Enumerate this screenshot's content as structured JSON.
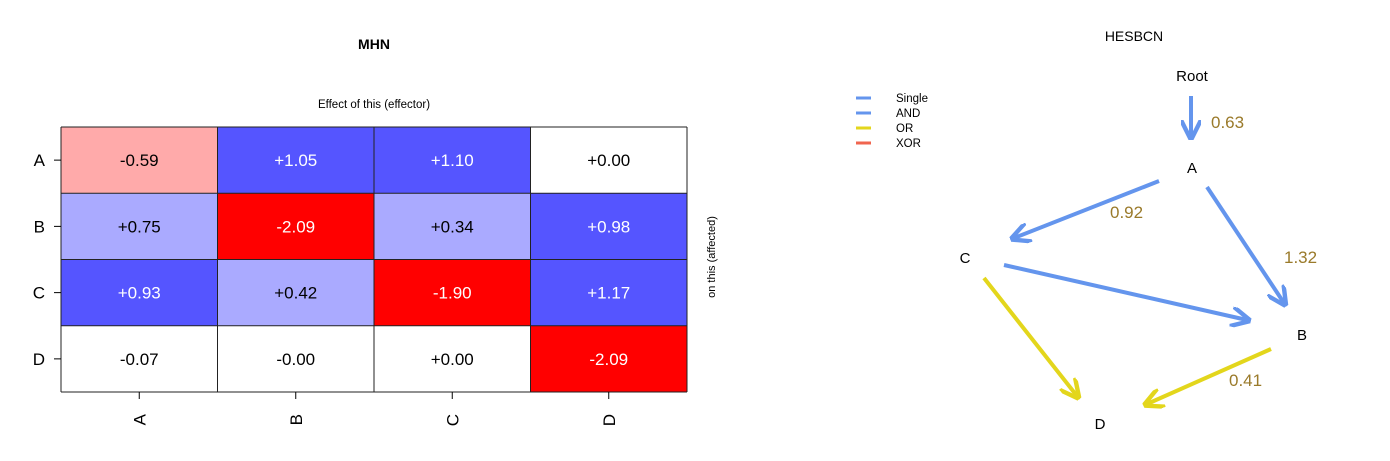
{
  "chart_data": [
    {
      "type": "heatmap",
      "title": "MHN",
      "xlabel": "Effect of this (effector)",
      "ylabel": "on this (affected)",
      "rows": [
        "A",
        "B",
        "C",
        "D"
      ],
      "columns": [
        "A",
        "B",
        "C",
        "D"
      ],
      "values": [
        [
          -0.59,
          1.05,
          1.1,
          0.0
        ],
        [
          0.75,
          -2.09,
          0.34,
          0.98
        ],
        [
          0.93,
          0.42,
          -1.9,
          1.17
        ],
        [
          -0.07,
          -0.0,
          0.0,
          -2.09
        ]
      ],
      "labels": [
        [
          "-0.59",
          "+1.05",
          "+1.10",
          "+0.00"
        ],
        [
          "+0.75",
          "-2.09",
          "+0.34",
          "+0.98"
        ],
        [
          "+0.93",
          "+0.42",
          "-1.90",
          "+1.17"
        ],
        [
          "-0.07",
          "-0.00",
          "+0.00",
          "-2.09"
        ]
      ],
      "cell_colors": [
        [
          "#ffaaaa",
          "#5555ff",
          "#5555ff",
          "#ffffff"
        ],
        [
          "#aaaaff",
          "#ff0000",
          "#aaaaff",
          "#5555ff"
        ],
        [
          "#5555ff",
          "#aaaaff",
          "#ff0000",
          "#5555ff"
        ],
        [
          "#ffffff",
          "#ffffff",
          "#ffffff",
          "#ff0000"
        ]
      ],
      "text_colors": [
        [
          "#000000",
          "#ffffff",
          "#ffffff",
          "#000000"
        ],
        [
          "#000000",
          "#ffffff",
          "#000000",
          "#ffffff"
        ],
        [
          "#ffffff",
          "#000000",
          "#ffffff",
          "#ffffff"
        ],
        [
          "#000000",
          "#000000",
          "#000000",
          "#ffffff"
        ]
      ]
    },
    {
      "type": "diagram",
      "title": "HESBCN",
      "legend": [
        {
          "label": "Single",
          "color": "#6495ed"
        },
        {
          "label": "AND",
          "color": "#6495ed"
        },
        {
          "label": "OR",
          "color": "#e3d61c"
        },
        {
          "label": "XOR",
          "color": "#f0654f"
        }
      ],
      "nodes": [
        "Root",
        "A",
        "C",
        "B",
        "D"
      ],
      "edges": [
        {
          "from": "Root",
          "to": "A",
          "weight": "0.63",
          "type": "Single"
        },
        {
          "from": "A",
          "to": "C",
          "weight": "0.92",
          "type": "Single"
        },
        {
          "from": "A",
          "to": "B",
          "weight": "1.32",
          "type": "AND"
        },
        {
          "from": "C",
          "to": "B",
          "weight": "",
          "type": "AND"
        },
        {
          "from": "C",
          "to": "D",
          "weight": "",
          "type": "OR"
        },
        {
          "from": "B",
          "to": "D",
          "weight": "0.41",
          "type": "OR"
        }
      ],
      "weight_color": "#9a7a2a"
    }
  ]
}
